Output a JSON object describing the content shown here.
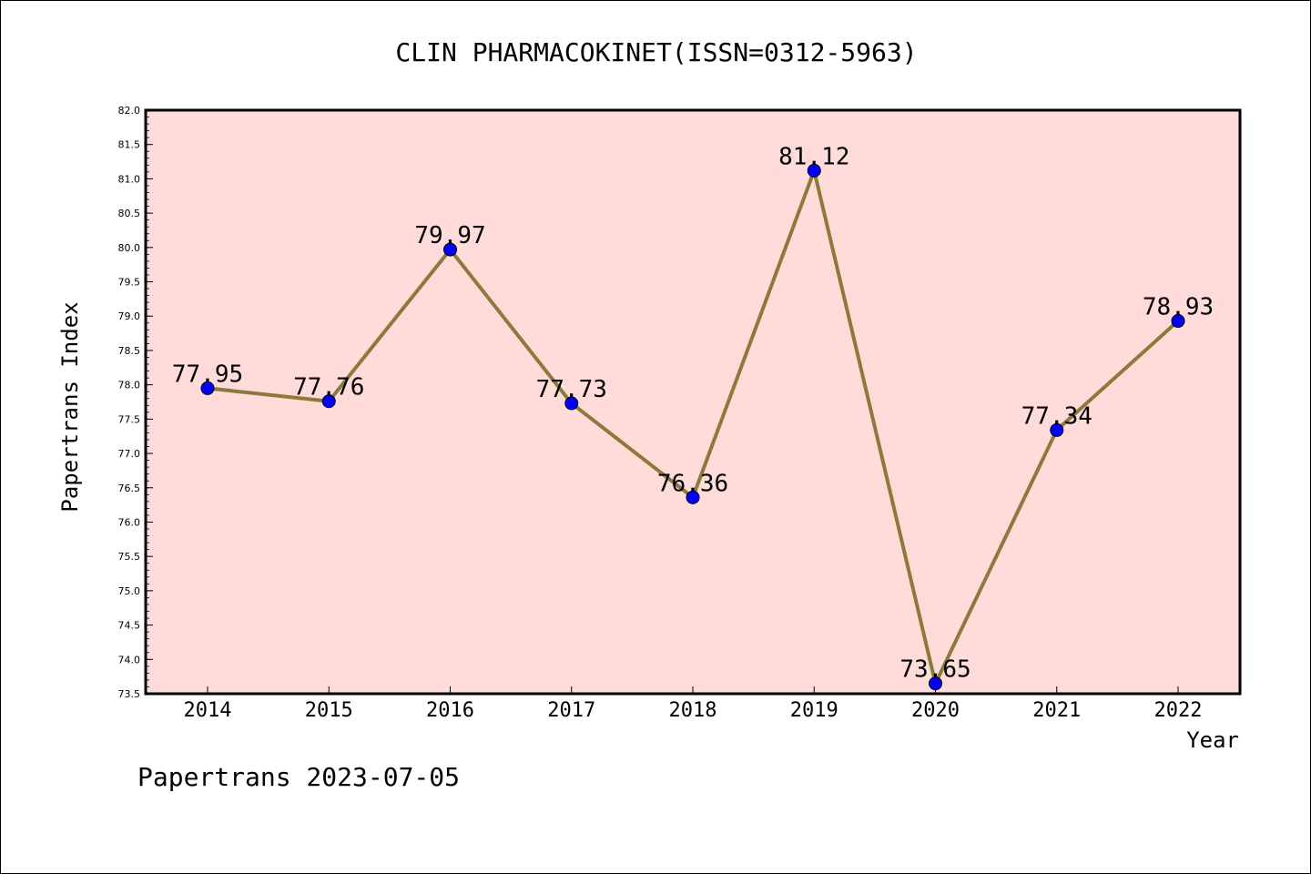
{
  "chart_data": {
    "type": "line",
    "title": "CLIN PHARMACOKINET(ISSN=0312-5963)",
    "xlabel": "Year",
    "ylabel": "Papertrans Index",
    "categories": [
      "2014",
      "2015",
      "2016",
      "2017",
      "2018",
      "2019",
      "2020",
      "2021",
      "2022"
    ],
    "series": [
      {
        "values": [
          77.95,
          77.76,
          79.97,
          77.73,
          76.36,
          81.12,
          73.65,
          77.34,
          78.93
        ],
        "data_labels": [
          "77.95",
          "77.76",
          "79.97",
          "77.73",
          "76.36",
          "81.12",
          "73.65",
          "77.34",
          "78.93"
        ],
        "line_color": "#8B7A3A",
        "marker_color": "#0000FF"
      }
    ],
    "ylim": [
      73.5,
      82.0
    ],
    "yticks": [
      "73.5",
      "74.0",
      "74.5",
      "75.0",
      "75.5",
      "76.0",
      "76.5",
      "77.0",
      "77.5",
      "78.0",
      "78.5",
      "79.0",
      "79.5",
      "80.0",
      "80.5",
      "81.0",
      "81.5",
      "82.0"
    ],
    "grid": false,
    "plot_background": "#FFDCDA"
  },
  "footer": "Papertrans 2023-07-05"
}
